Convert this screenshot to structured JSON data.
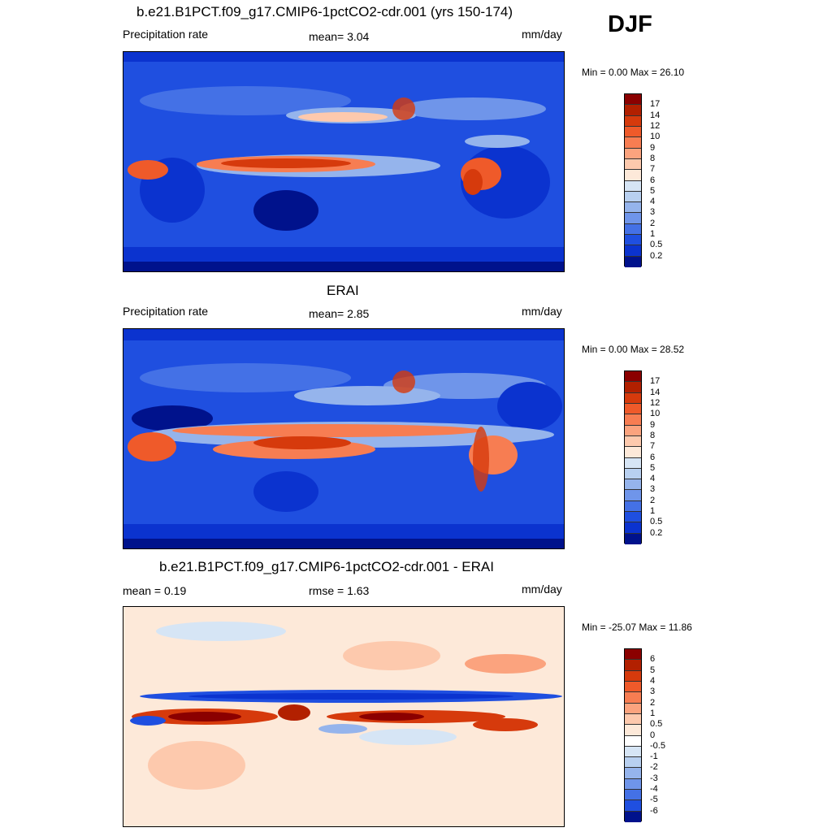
{
  "season": "DJF",
  "panels": [
    {
      "title": "b.e21.B1PCT.f09_g17.CMIP6-1pctCO2-cdr.001 (yrs 150-174)",
      "left_label": "Precipitation rate",
      "center_label": "mean=   3.04",
      "units": "mm/day",
      "minmax": "Min =   0.00 Max =  26.10",
      "kind": "precip"
    },
    {
      "title": "ERAI",
      "left_label": "Precipitation rate",
      "center_label": "mean=   2.85",
      "units": "mm/day",
      "minmax": "Min =   0.00 Max =  28.52",
      "kind": "precip2"
    },
    {
      "title": "b.e21.B1PCT.f09_g17.CMIP6-1pctCO2-cdr.001 - ERAI",
      "left_label": "mean =   0.19",
      "center_label": "rmse =   1.63",
      "units": "mm/day",
      "minmax": "Min = -25.07 Max =  11.86",
      "kind": "diff"
    }
  ],
  "colorbars": {
    "precip": {
      "labels": [
        "17",
        "14",
        "12",
        "10",
        "9",
        "8",
        "7",
        "6",
        "5",
        "4",
        "3",
        "2",
        "1",
        "0.5",
        "0.2"
      ],
      "colors": [
        "#8b0000",
        "#b22000",
        "#d63a0c",
        "#ef5a2a",
        "#f77d52",
        "#fba37e",
        "#fdc9ad",
        "#fde9d9",
        "#d6e5f5",
        "#b8d0f0",
        "#95b4ec",
        "#6f95ea",
        "#4471e6",
        "#1f4fe0",
        "#0b33cf",
        "#00128c"
      ]
    },
    "diff": {
      "labels": [
        "6",
        "5",
        "4",
        "3",
        "2",
        "1",
        "0.5",
        "0",
        "-0.5",
        "-1",
        "-2",
        "-3",
        "-4",
        "-5",
        "-6"
      ],
      "colors": [
        "#8b0000",
        "#b22000",
        "#d63a0c",
        "#ef5a2a",
        "#f77d52",
        "#fba37e",
        "#fdc9ad",
        "#fde9d9",
        "#ffffff",
        "#d6e5f5",
        "#b8d0f0",
        "#95b4ec",
        "#6f95ea",
        "#4471e6",
        "#1f4fe0",
        "#00128c"
      ]
    }
  },
  "chart_data": [
    {
      "type": "heatmap",
      "title": "b.e21.B1PCT.f09_g17.CMIP6-1pctCO2-cdr.001 (yrs 150-174)",
      "variable": "Precipitation rate",
      "units": "mm/day",
      "mean": 3.04,
      "min": 0.0,
      "max": 26.1,
      "contour_levels": [
        0.2,
        0.5,
        1,
        2,
        3,
        4,
        5,
        6,
        7,
        8,
        9,
        10,
        12,
        14,
        17
      ]
    },
    {
      "type": "heatmap",
      "title": "ERAI",
      "variable": "Precipitation rate",
      "units": "mm/day",
      "mean": 2.85,
      "min": 0.0,
      "max": 28.52,
      "contour_levels": [
        0.2,
        0.5,
        1,
        2,
        3,
        4,
        5,
        6,
        7,
        8,
        9,
        10,
        12,
        14,
        17
      ]
    },
    {
      "type": "heatmap",
      "title": "b.e21.B1PCT.f09_g17.CMIP6-1pctCO2-cdr.001 - ERAI",
      "units": "mm/day",
      "mean": 0.19,
      "rmse": 1.63,
      "min": -25.07,
      "max": 11.86,
      "contour_levels": [
        -6,
        -5,
        -4,
        -3,
        -2,
        -1,
        -0.5,
        0,
        0.5,
        1,
        2,
        3,
        4,
        5,
        6
      ]
    }
  ]
}
